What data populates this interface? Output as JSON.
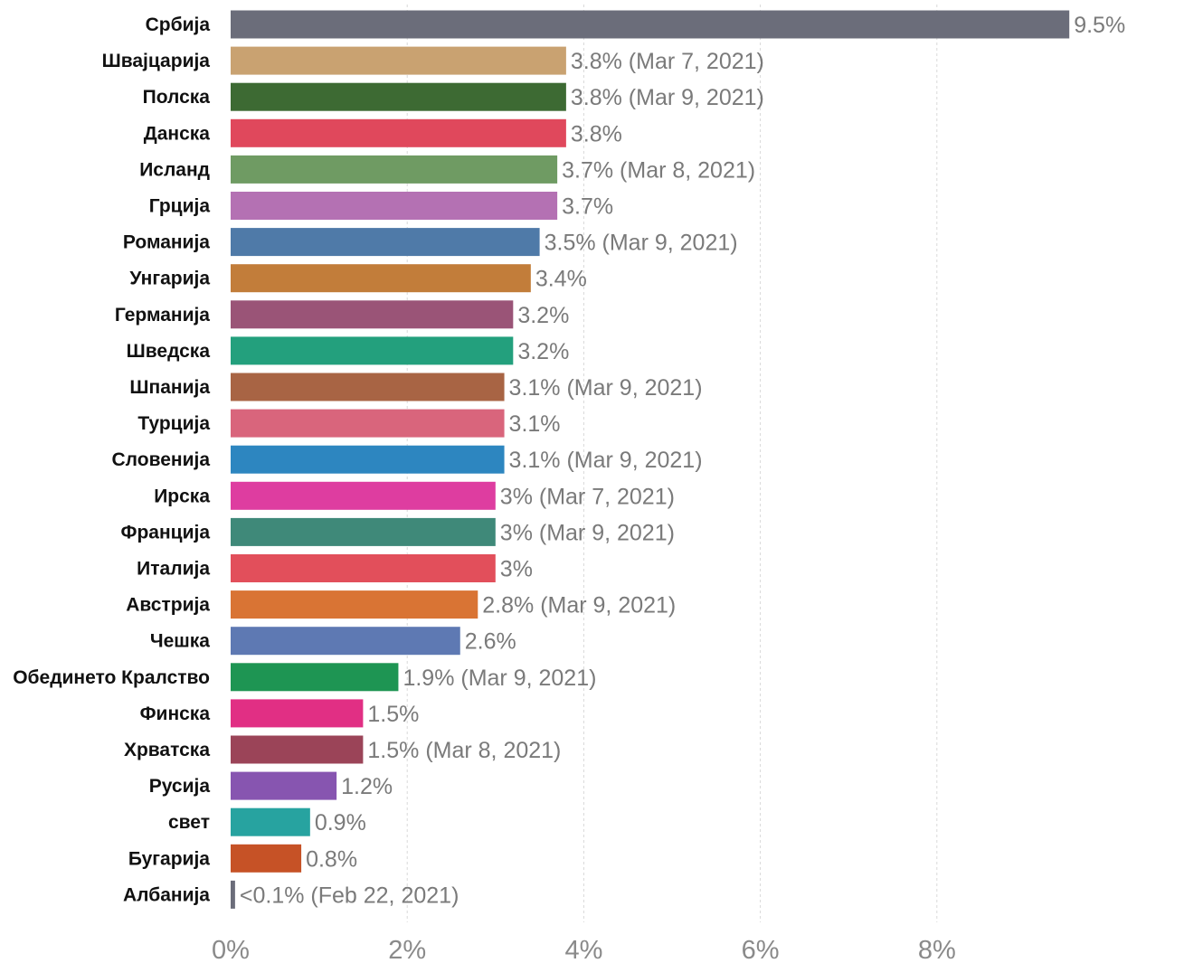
{
  "chart_data": {
    "type": "bar",
    "orientation": "horizontal",
    "categories": [
      "Србија",
      "Швајцарија",
      "Полска",
      "Данска",
      "Исланд",
      "Грција",
      "Романија",
      "Унгарија",
      "Германија",
      "Шведска",
      "Шпанија",
      "Турција",
      "Словенија",
      "Ирска",
      "Франција",
      "Италиjа",
      "Австрија",
      "Чешка",
      "Обединето Кралство",
      "Финска",
      "Хрватска",
      "Русија",
      "свет",
      "Бугарија",
      "Албанија"
    ],
    "values": [
      9.5,
      3.8,
      3.8,
      3.8,
      3.7,
      3.7,
      3.5,
      3.4,
      3.2,
      3.2,
      3.1,
      3.1,
      3.1,
      3.0,
      3.0,
      3.0,
      2.8,
      2.6,
      1.9,
      1.5,
      1.5,
      1.2,
      0.9,
      0.8,
      0.05
    ],
    "value_labels": [
      "9.5%",
      "3.8% (Mar 7, 2021)",
      "3.8% (Mar 9, 2021)",
      "3.8%",
      "3.7% (Mar 8, 2021)",
      "3.7%",
      "3.5% (Mar 9, 2021)",
      "3.4%",
      "3.2%",
      "3.2%",
      "3.1% (Mar 9, 2021)",
      "3.1%",
      "3.1% (Mar 9, 2021)",
      "3% (Mar 7, 2021)",
      "3% (Mar 9, 2021)",
      "3%",
      "2.8% (Mar 9, 2021)",
      "2.6%",
      "1.9% (Mar 9, 2021)",
      "1.5%",
      "1.5% (Mar 8, 2021)",
      "1.2%",
      "0.9%",
      "0.8%",
      "<0.1% (Feb 22, 2021)"
    ],
    "colors": [
      "#6b6d7a",
      "#c9a271",
      "#3d6a33",
      "#e0485c",
      "#6f9b63",
      "#b471b3",
      "#4f7aa8",
      "#c27d3a",
      "#9a5477",
      "#23a07d",
      "#a86444",
      "#d9657c",
      "#2d86c0",
      "#de3da0",
      "#3f8979",
      "#e24f5b",
      "#d97434",
      "#5e79b3",
      "#1e9553",
      "#e12f84",
      "#9b4458",
      "#8755b0",
      "#27a3a0",
      "#c65226",
      "#6b6d7a"
    ],
    "x_ticks": [
      "0%",
      "2%",
      "4%",
      "6%",
      "8%"
    ],
    "x_tick_values": [
      0,
      2,
      4,
      6,
      8
    ],
    "xlim": [
      0,
      10.5
    ],
    "grid": "vertical-dashed",
    "title": "",
    "xlabel": "",
    "ylabel": ""
  }
}
